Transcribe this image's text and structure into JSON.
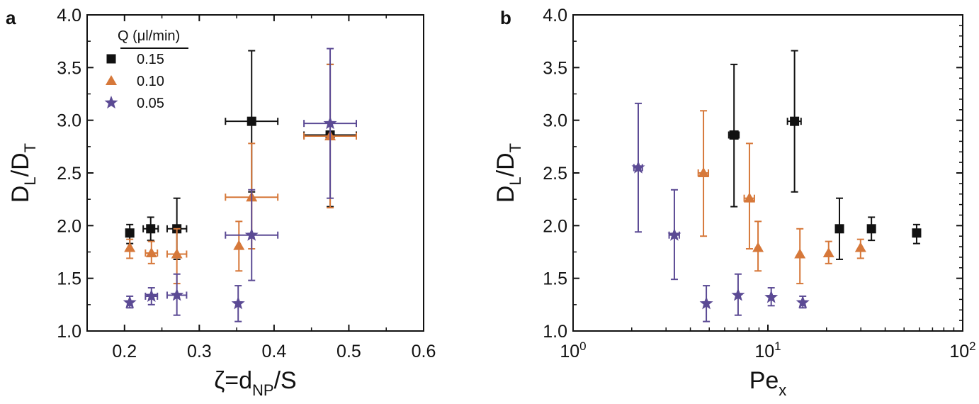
{
  "colors": {
    "series_0.15": "#111111",
    "series_0.10": "#D6783A",
    "series_0.05": "#5B4A94",
    "axis": "#111111"
  },
  "legend": {
    "title": "Q (μl/min)",
    "entries": [
      {
        "label": "0.15",
        "marker": "square-icon",
        "color": "#111111"
      },
      {
        "label": "0.10",
        "marker": "triangle-icon",
        "color": "#D6783A"
      },
      {
        "label": "0.05",
        "marker": "star-icon",
        "color": "#5B4A94"
      }
    ]
  },
  "chart_data": [
    {
      "panel": "a",
      "type": "scatter",
      "title": "",
      "xlabel": "ζ=d_NP/S",
      "xlabel_main": "ζ=d",
      "xlabel_sub": "NP",
      "xlabel_tail": "/S",
      "ylabel_main": "D",
      "ylabel_sub1": "L",
      "ylabel_mid": "/D",
      "ylabel_sub2": "T",
      "xscale": "linear",
      "xlim": [
        0.15,
        0.6
      ],
      "ylim": [
        1.0,
        4.0
      ],
      "xticks": [
        0.2,
        0.3,
        0.4,
        0.5,
        0.6
      ],
      "xtick_labels": [
        "0.2",
        "0.3",
        "0.4",
        "0.5",
        "0.6"
      ],
      "yticks": [
        1.0,
        1.5,
        2.0,
        2.5,
        3.0,
        3.5,
        4.0
      ],
      "ytick_labels": [
        "1.0",
        "1.5",
        "2.0",
        "2.5",
        "3.0",
        "3.5",
        "4.0"
      ],
      "grid": false,
      "legend_position": "top-left",
      "series": [
        {
          "name": "0.15",
          "marker": "square",
          "points": [
            {
              "x": 0.207,
              "y": 1.93,
              "ylo": 1.83,
              "yhi": 2.01,
              "xerr": 0
            },
            {
              "x": 0.235,
              "y": 1.97,
              "ylo": 1.86,
              "yhi": 2.08,
              "xerr": 0.01
            },
            {
              "x": 0.27,
              "y": 1.97,
              "ylo": 1.68,
              "yhi": 2.26,
              "xerr": 0.013
            },
            {
              "x": 0.37,
              "y": 2.99,
              "ylo": 2.32,
              "yhi": 3.66,
              "xerr": 0.035
            },
            {
              "x": 0.475,
              "y": 2.86,
              "ylo": 2.18,
              "yhi": 3.53,
              "xerr": 0.035
            }
          ]
        },
        {
          "name": "0.10",
          "marker": "triangle",
          "points": [
            {
              "x": 0.207,
              "y": 1.79,
              "ylo": 1.69,
              "yhi": 1.87,
              "xerr": 0
            },
            {
              "x": 0.236,
              "y": 1.74,
              "ylo": 1.64,
              "yhi": 1.85,
              "xerr": 0.008
            },
            {
              "x": 0.27,
              "y": 1.73,
              "ylo": 1.45,
              "yhi": 1.97,
              "xerr": 0.013
            },
            {
              "x": 0.353,
              "y": 1.81,
              "ylo": 1.57,
              "yhi": 2.04,
              "xerr": 0
            },
            {
              "x": 0.37,
              "y": 2.27,
              "ylo": 1.78,
              "yhi": 2.78,
              "xerr": 0.035
            },
            {
              "x": 0.475,
              "y": 2.85,
              "ylo": 2.17,
              "yhi": 3.53,
              "xerr": 0.035
            }
          ]
        },
        {
          "name": "0.05",
          "marker": "star",
          "points": [
            {
              "x": 0.207,
              "y": 1.27,
              "ylo": 1.22,
              "yhi": 1.33,
              "xerr": 0
            },
            {
              "x": 0.236,
              "y": 1.33,
              "ylo": 1.25,
              "yhi": 1.41,
              "xerr": 0.008
            },
            {
              "x": 0.27,
              "y": 1.34,
              "ylo": 1.15,
              "yhi": 1.54,
              "xerr": 0.013
            },
            {
              "x": 0.352,
              "y": 1.26,
              "ylo": 1.09,
              "yhi": 1.43,
              "xerr": 0
            },
            {
              "x": 0.37,
              "y": 1.91,
              "ylo": 1.48,
              "yhi": 2.34,
              "xerr": 0.035
            },
            {
              "x": 0.475,
              "y": 2.97,
              "ylo": 2.26,
              "yhi": 3.68,
              "xerr": 0.035
            }
          ]
        }
      ]
    },
    {
      "panel": "b",
      "type": "scatter",
      "title": "",
      "xlabel": "Pe_x",
      "xlabel_main": "Pe",
      "xlabel_sub": "x",
      "xlabel_tail": "",
      "ylabel_main": "D",
      "ylabel_sub1": "L",
      "ylabel_mid": "/D",
      "ylabel_sub2": "T",
      "xscale": "log",
      "xlim": [
        1,
        100
      ],
      "ylim": [
        1.0,
        4.0
      ],
      "xticks": [
        1,
        10,
        100
      ],
      "xtick_labels": [
        {
          "base": "10",
          "exp": "0"
        },
        {
          "base": "10",
          "exp": "1"
        },
        {
          "base": "10",
          "exp": "2"
        }
      ],
      "yticks": [
        1.0,
        1.5,
        2.0,
        2.5,
        3.0,
        3.5,
        4.0
      ],
      "ytick_labels": [
        "1.0",
        "1.5",
        "2.0",
        "2.5",
        "3.0",
        "3.5",
        "4.0"
      ],
      "grid": false,
      "series": [
        {
          "name": "0.15",
          "marker": "square",
          "points": [
            {
              "x": 6.7,
              "y": 2.86,
              "ylo": 2.18,
              "yhi": 3.53,
              "xerr_rel": 0.06
            },
            {
              "x": 13.7,
              "y": 2.99,
              "ylo": 2.32,
              "yhi": 3.66,
              "xerr_rel": 0.08
            },
            {
              "x": 23.3,
              "y": 1.97,
              "ylo": 1.68,
              "yhi": 2.26,
              "xerr_rel": 0
            },
            {
              "x": 34.0,
              "y": 1.97,
              "ylo": 1.86,
              "yhi": 2.08,
              "xerr_rel": 0
            },
            {
              "x": 58.0,
              "y": 1.93,
              "ylo": 1.83,
              "yhi": 2.01,
              "xerr_rel": 0
            }
          ]
        },
        {
          "name": "0.10",
          "marker": "triangle",
          "points": [
            {
              "x": 4.67,
              "y": 2.5,
              "ylo": 1.9,
              "yhi": 3.09,
              "xerr_rel": 0.06
            },
            {
              "x": 8.04,
              "y": 2.26,
              "ylo": 1.78,
              "yhi": 2.78,
              "xerr_rel": 0.06
            },
            {
              "x": 8.9,
              "y": 1.79,
              "ylo": 1.57,
              "yhi": 2.04,
              "xerr_rel": 0
            },
            {
              "x": 14.6,
              "y": 1.73,
              "ylo": 1.45,
              "yhi": 1.97,
              "xerr_rel": 0
            },
            {
              "x": 20.5,
              "y": 1.74,
              "ylo": 1.64,
              "yhi": 1.85,
              "xerr_rel": 0
            },
            {
              "x": 29.9,
              "y": 1.79,
              "ylo": 1.69,
              "yhi": 1.87,
              "xerr_rel": 0
            }
          ]
        },
        {
          "name": "0.05",
          "marker": "star",
          "points": [
            {
              "x": 2.16,
              "y": 2.55,
              "ylo": 1.94,
              "yhi": 3.16,
              "xerr_rel": 0.05
            },
            {
              "x": 3.31,
              "y": 1.91,
              "ylo": 1.49,
              "yhi": 2.34,
              "xerr_rel": 0.06
            },
            {
              "x": 4.83,
              "y": 1.26,
              "ylo": 1.09,
              "yhi": 1.43,
              "xerr_rel": 0
            },
            {
              "x": 7.03,
              "y": 1.34,
              "ylo": 1.15,
              "yhi": 1.54,
              "xerr_rel": 0
            },
            {
              "x": 10.4,
              "y": 1.32,
              "ylo": 1.24,
              "yhi": 1.41,
              "xerr_rel": 0
            },
            {
              "x": 15.1,
              "y": 1.27,
              "ylo": 1.22,
              "yhi": 1.33,
              "xerr_rel": 0
            }
          ]
        }
      ]
    }
  ],
  "panels": {
    "a_label": "a",
    "b_label": "b"
  }
}
